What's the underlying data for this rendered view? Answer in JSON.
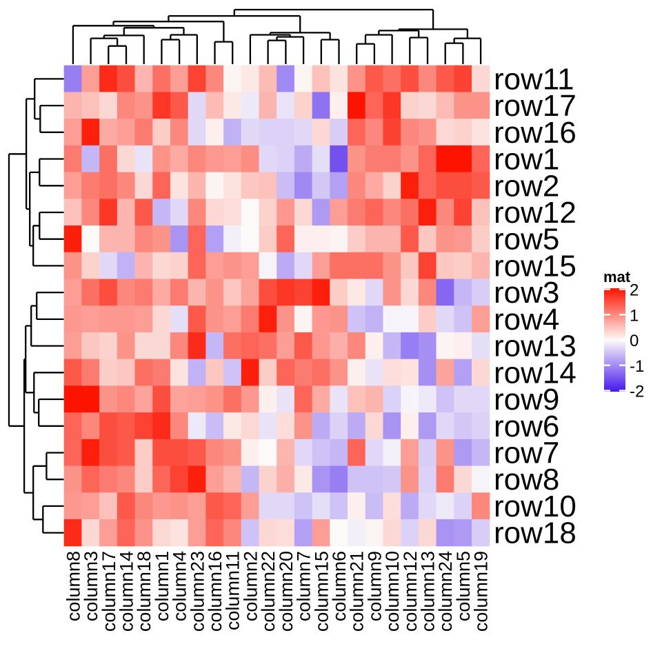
{
  "chart_data": {
    "type": "heatmap",
    "legend_title": "mat",
    "value_range": [
      -2,
      2
    ],
    "legend_ticks": [
      "2",
      "1",
      "0",
      "-1",
      "-2"
    ],
    "legend_tick_values": [
      2,
      1,
      0,
      -1,
      -2
    ],
    "colors": {
      "positive_max": "#FC1400",
      "zero": "#FCFAF9",
      "negative_max": "#4518EC",
      "line": "#000000"
    },
    "rows": [
      "row11",
      "row17",
      "row16",
      "row1",
      "row2",
      "row12",
      "row5",
      "row15",
      "row3",
      "row4",
      "row13",
      "row14",
      "row9",
      "row6",
      "row7",
      "row8",
      "row10",
      "row18"
    ],
    "columns": [
      "column8",
      "column3",
      "column17",
      "column14",
      "column18",
      "column1",
      "column4",
      "column23",
      "column16",
      "column11",
      "column2",
      "column22",
      "column20",
      "column7",
      "column15",
      "column6",
      "column21",
      "column9",
      "column10",
      "column12",
      "column13",
      "column24",
      "column5",
      "column19"
    ],
    "values": [
      [
        -1.1,
        0.8,
        1.8,
        1.5,
        0.6,
        1.2,
        0.8,
        1.6,
        1.0,
        0.05,
        0.15,
        0.55,
        -1.0,
        0.05,
        0.5,
        0.2,
        0.9,
        1.4,
        1.2,
        1.5,
        1.0,
        1.4,
        1.6,
        0.3
      ],
      [
        0.6,
        0.5,
        0.3,
        1.0,
        0.9,
        1.7,
        1.4,
        -0.3,
        0.55,
        0.15,
        -0.15,
        0.6,
        -0.2,
        0.35,
        -1.2,
        0.1,
        2.0,
        1.3,
        1.7,
        0.35,
        0.3,
        0.55,
        0.9,
        0.9
      ],
      [
        0.8,
        1.9,
        0.7,
        0.8,
        1.1,
        0.4,
        1.0,
        -0.3,
        0.1,
        -0.65,
        -0.3,
        -0.35,
        -0.35,
        -0.3,
        0.3,
        -0.4,
        1.3,
        1.0,
        1.6,
        1.0,
        0.9,
        0.3,
        0.35,
        0.2
      ],
      [
        1.1,
        -0.6,
        1.2,
        0.3,
        -0.2,
        0.9,
        0.7,
        1.0,
        0.85,
        0.8,
        0.95,
        -0.3,
        -0.35,
        -0.7,
        -0.25,
        -1.5,
        0.9,
        1.1,
        1.1,
        0.9,
        1.3,
        2.0,
        2.0,
        1.3
      ],
      [
        0.8,
        1.1,
        1.2,
        1.0,
        0.3,
        1.3,
        0.2,
        0.6,
        0.05,
        0.2,
        0.45,
        0.5,
        -0.55,
        -1.0,
        -0.45,
        -0.8,
        1.0,
        0.7,
        0.35,
        1.9,
        1.3,
        1.5,
        1.5,
        1.4
      ],
      [
        0.5,
        1.0,
        1.7,
        0.6,
        1.4,
        -0.6,
        -0.3,
        1.0,
        0.3,
        0.25,
        0.0,
        0.35,
        0.85,
        0.3,
        -0.85,
        0.8,
        1.1,
        1.3,
        1.0,
        1.2,
        1.9,
        1.0,
        1.6,
        0.5
      ],
      [
        1.9,
        0.0,
        0.6,
        0.6,
        1.0,
        0.9,
        -0.9,
        1.3,
        -0.8,
        -0.1,
        0.0,
        0.4,
        1.3,
        0.1,
        0.1,
        0.05,
        0.4,
        0.6,
        0.6,
        1.4,
        0.45,
        0.9,
        0.85,
        0.4
      ],
      [
        0.9,
        0.35,
        -0.3,
        -0.65,
        0.6,
        0.3,
        0.35,
        1.3,
        0.8,
        0.9,
        0.8,
        -0.05,
        -0.7,
        -0.3,
        0.8,
        1.2,
        1.2,
        1.2,
        0.9,
        0.45,
        1.6,
        0.45,
        0.4,
        0.6
      ],
      [
        0.8,
        1.2,
        1.5,
        1.0,
        1.1,
        0.7,
        1.1,
        0.6,
        0.9,
        0.45,
        0.75,
        1.5,
        1.7,
        1.6,
        1.9,
        0.4,
        0.15,
        -0.3,
        0.9,
        0.3,
        1.0,
        -1.3,
        -0.6,
        -0.4
      ],
      [
        0.85,
        0.8,
        0.85,
        0.85,
        0.8,
        0.3,
        -0.25,
        1.4,
        0.9,
        0.8,
        1.1,
        1.9,
        0.9,
        0.05,
        0.85,
        0.9,
        -0.5,
        -0.65,
        -0.05,
        -0.05,
        0.4,
        -0.3,
        -0.5,
        0.8
      ],
      [
        0.8,
        0.45,
        0.35,
        0.9,
        0.3,
        0.3,
        1.0,
        1.8,
        -0.6,
        1.2,
        1.3,
        1.2,
        0.8,
        1.4,
        0.85,
        0.65,
        1.0,
        0.1,
        -0.6,
        -1.1,
        -0.95,
        0.05,
        0.1,
        -0.25
      ],
      [
        1.4,
        1.1,
        0.4,
        0.45,
        1.2,
        1.1,
        0.2,
        -0.65,
        0.45,
        -0.5,
        1.9,
        0.4,
        1.3,
        1.1,
        1.2,
        0.9,
        0.1,
        -0.2,
        0.25,
        0.2,
        -0.95,
        0.75,
        -0.8,
        0.3
      ],
      [
        2.0,
        2.0,
        0.9,
        1.0,
        0.75,
        1.5,
        0.75,
        0.8,
        0.9,
        1.2,
        0.85,
        0.1,
        -0.2,
        1.3,
        0.7,
        -0.2,
        0.5,
        0.6,
        -0.35,
        -0.05,
        -0.15,
        -0.5,
        -0.3,
        -0.3
      ],
      [
        1.3,
        1.0,
        1.5,
        1.4,
        1.6,
        1.8,
        1.0,
        -0.15,
        -0.55,
        0.15,
        0.3,
        -0.2,
        0.25,
        0.9,
        -0.7,
        -0.35,
        -0.7,
        0.3,
        -0.9,
        0.1,
        -0.85,
        -0.3,
        -0.45,
        -0.35
      ],
      [
        1.3,
        1.9,
        1.5,
        1.4,
        0.4,
        1.5,
        1.5,
        1.4,
        1.0,
        0.9,
        0.1,
        0.0,
        0.6,
        -0.3,
        -0.5,
        -0.6,
        1.3,
        -0.3,
        -0.1,
        0.8,
        -0.4,
        0.9,
        -0.85,
        -0.6
      ],
      [
        0.9,
        1.3,
        1.1,
        1.0,
        0.4,
        1.3,
        1.6,
        1.9,
        0.8,
        0.6,
        -0.6,
        0.35,
        0.65,
        0.15,
        -0.9,
        -1.1,
        -0.5,
        -0.5,
        -0.45,
        0.9,
        -0.35,
        1.1,
        0.3,
        -0.05
      ],
      [
        0.85,
        0.8,
        0.5,
        1.4,
        1.0,
        0.85,
        0.9,
        0.8,
        1.4,
        1.3,
        0.8,
        -0.3,
        -0.3,
        -0.5,
        -0.25,
        -0.5,
        0.1,
        -0.55,
        0.25,
        -0.7,
        -0.3,
        -0.15,
        -0.35,
        1.0
      ],
      [
        1.8,
        0.3,
        0.8,
        1.3,
        0.9,
        0.3,
        0.2,
        0.8,
        1.3,
        1.0,
        -0.5,
        0.3,
        0.25,
        -0.8,
        0.8,
        0.0,
        -0.1,
        0.05,
        0.3,
        -0.35,
        0.3,
        -0.9,
        -0.85,
        -0.4
      ]
    ],
    "col_dendrogram": {
      "merges": [
        [
          "L3",
          "L4",
          0.333
        ],
        [
          "L2",
          "M1",
          0.474
        ],
        [
          "M2",
          "L5",
          0.526
        ],
        [
          "L6",
          "L7",
          0.449
        ],
        [
          "M4",
          "L8",
          0.538
        ],
        [
          "M3",
          "M5",
          0.667
        ],
        [
          "L1",
          "M6",
          0.705
        ],
        [
          "L9",
          "L10",
          0.41
        ],
        [
          "M7",
          "M8",
          0.782
        ],
        [
          "L12",
          "L13",
          0.436
        ],
        [
          "M10",
          "L14",
          0.5
        ],
        [
          "L11",
          "M11",
          0.538
        ],
        [
          "L15",
          "L16",
          0.449
        ],
        [
          "M12",
          "M13",
          0.577
        ],
        [
          "M9",
          "M14",
          0.885
        ],
        [
          "L17",
          "L18",
          0.372
        ],
        [
          "M16",
          "L19",
          0.538
        ],
        [
          "L20",
          "L21",
          0.487
        ],
        [
          "M17",
          "M18",
          0.615
        ],
        [
          "L22",
          "L23",
          0.385
        ],
        [
          "M20",
          "L24",
          0.474
        ],
        [
          "M19",
          "M21",
          0.641
        ],
        [
          "M15",
          "M22",
          1.0
        ]
      ]
    },
    "row_dendrogram": {
      "merges": [
        [
          "L2",
          "L3",
          0.43
        ],
        [
          "L1",
          "M1",
          0.532
        ],
        [
          "L4",
          "L5",
          0.443
        ],
        [
          "L6",
          "L7",
          0.443
        ],
        [
          "M4",
          "L8",
          0.557
        ],
        [
          "M3",
          "M5",
          0.62
        ],
        [
          "M2",
          "M6",
          0.684
        ],
        [
          "L9",
          "L10",
          0.494
        ],
        [
          "M8",
          "L11",
          0.595
        ],
        [
          "L13",
          "L14",
          0.456
        ],
        [
          "L12",
          "M10",
          0.544
        ],
        [
          "M9",
          "M11",
          0.696
        ],
        [
          "L15",
          "L16",
          0.316
        ],
        [
          "L17",
          "L18",
          0.38
        ],
        [
          "M13",
          "M14",
          0.557
        ],
        [
          "M12",
          "M15",
          0.722
        ],
        [
          "M7",
          "M16",
          1.0
        ]
      ]
    }
  }
}
